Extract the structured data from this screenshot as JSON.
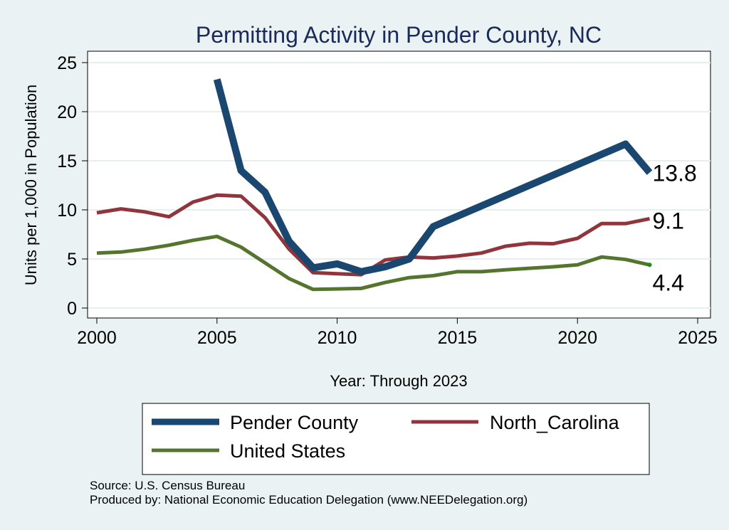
{
  "chart_data": {
    "type": "line",
    "title": "Permitting Activity in Pender County, NC",
    "xlabel": "Year: Through 2023",
    "ylabel": "Units per 1,000 in Population",
    "xlim": [
      2000,
      2025
    ],
    "ylim": [
      0,
      25
    ],
    "xticks": [
      2000,
      2005,
      2010,
      2015,
      2020,
      2025
    ],
    "yticks": [
      0,
      5,
      10,
      15,
      20,
      25
    ],
    "grid": true,
    "legend_position": "bottom",
    "series": [
      {
        "name": "Pender County",
        "color": "#1a476f",
        "x": [
          2005,
          2006,
          2007,
          2008,
          2009,
          2010,
          2011,
          2012,
          2013,
          2014,
          2022,
          2023
        ],
        "values": [
          23.3,
          14.0,
          11.8,
          6.8,
          4.1,
          4.5,
          3.7,
          4.2,
          5.0,
          8.3,
          16.7,
          13.8
        ],
        "end_label": "13.8"
      },
      {
        "name": "North_Carolina",
        "color": "#90353b",
        "x": [
          2000,
          2001,
          2002,
          2003,
          2004,
          2005,
          2006,
          2007,
          2008,
          2009,
          2010,
          2011,
          2012,
          2013,
          2014,
          2015,
          2016,
          2017,
          2018,
          2019,
          2020,
          2021,
          2022,
          2023
        ],
        "values": [
          9.7,
          10.1,
          9.8,
          9.3,
          10.8,
          11.5,
          11.4,
          9.2,
          6.0,
          3.6,
          3.5,
          3.4,
          4.9,
          5.2,
          5.1,
          5.3,
          5.6,
          6.3,
          6.6,
          6.55,
          7.1,
          8.6,
          8.6,
          9.1
        ],
        "end_label": "9.1"
      },
      {
        "name": "United States",
        "color": "#55752f",
        "x": [
          2000,
          2001,
          2002,
          2003,
          2004,
          2005,
          2006,
          2007,
          2008,
          2009,
          2010,
          2011,
          2012,
          2013,
          2014,
          2015,
          2016,
          2017,
          2018,
          2019,
          2020,
          2021,
          2022,
          2023
        ],
        "values": [
          5.6,
          5.7,
          6.0,
          6.4,
          6.9,
          7.3,
          6.2,
          4.6,
          3.0,
          1.9,
          1.95,
          2.0,
          2.6,
          3.1,
          3.3,
          3.7,
          3.7,
          3.9,
          4.05,
          4.2,
          4.4,
          5.2,
          4.95,
          4.4
        ],
        "end_label": "4.4"
      }
    ]
  },
  "source": "Source: U.S. Census Bureau",
  "produced_by": "Produced by: National Economic Education Delegation (www.NEEDelegation.org)"
}
